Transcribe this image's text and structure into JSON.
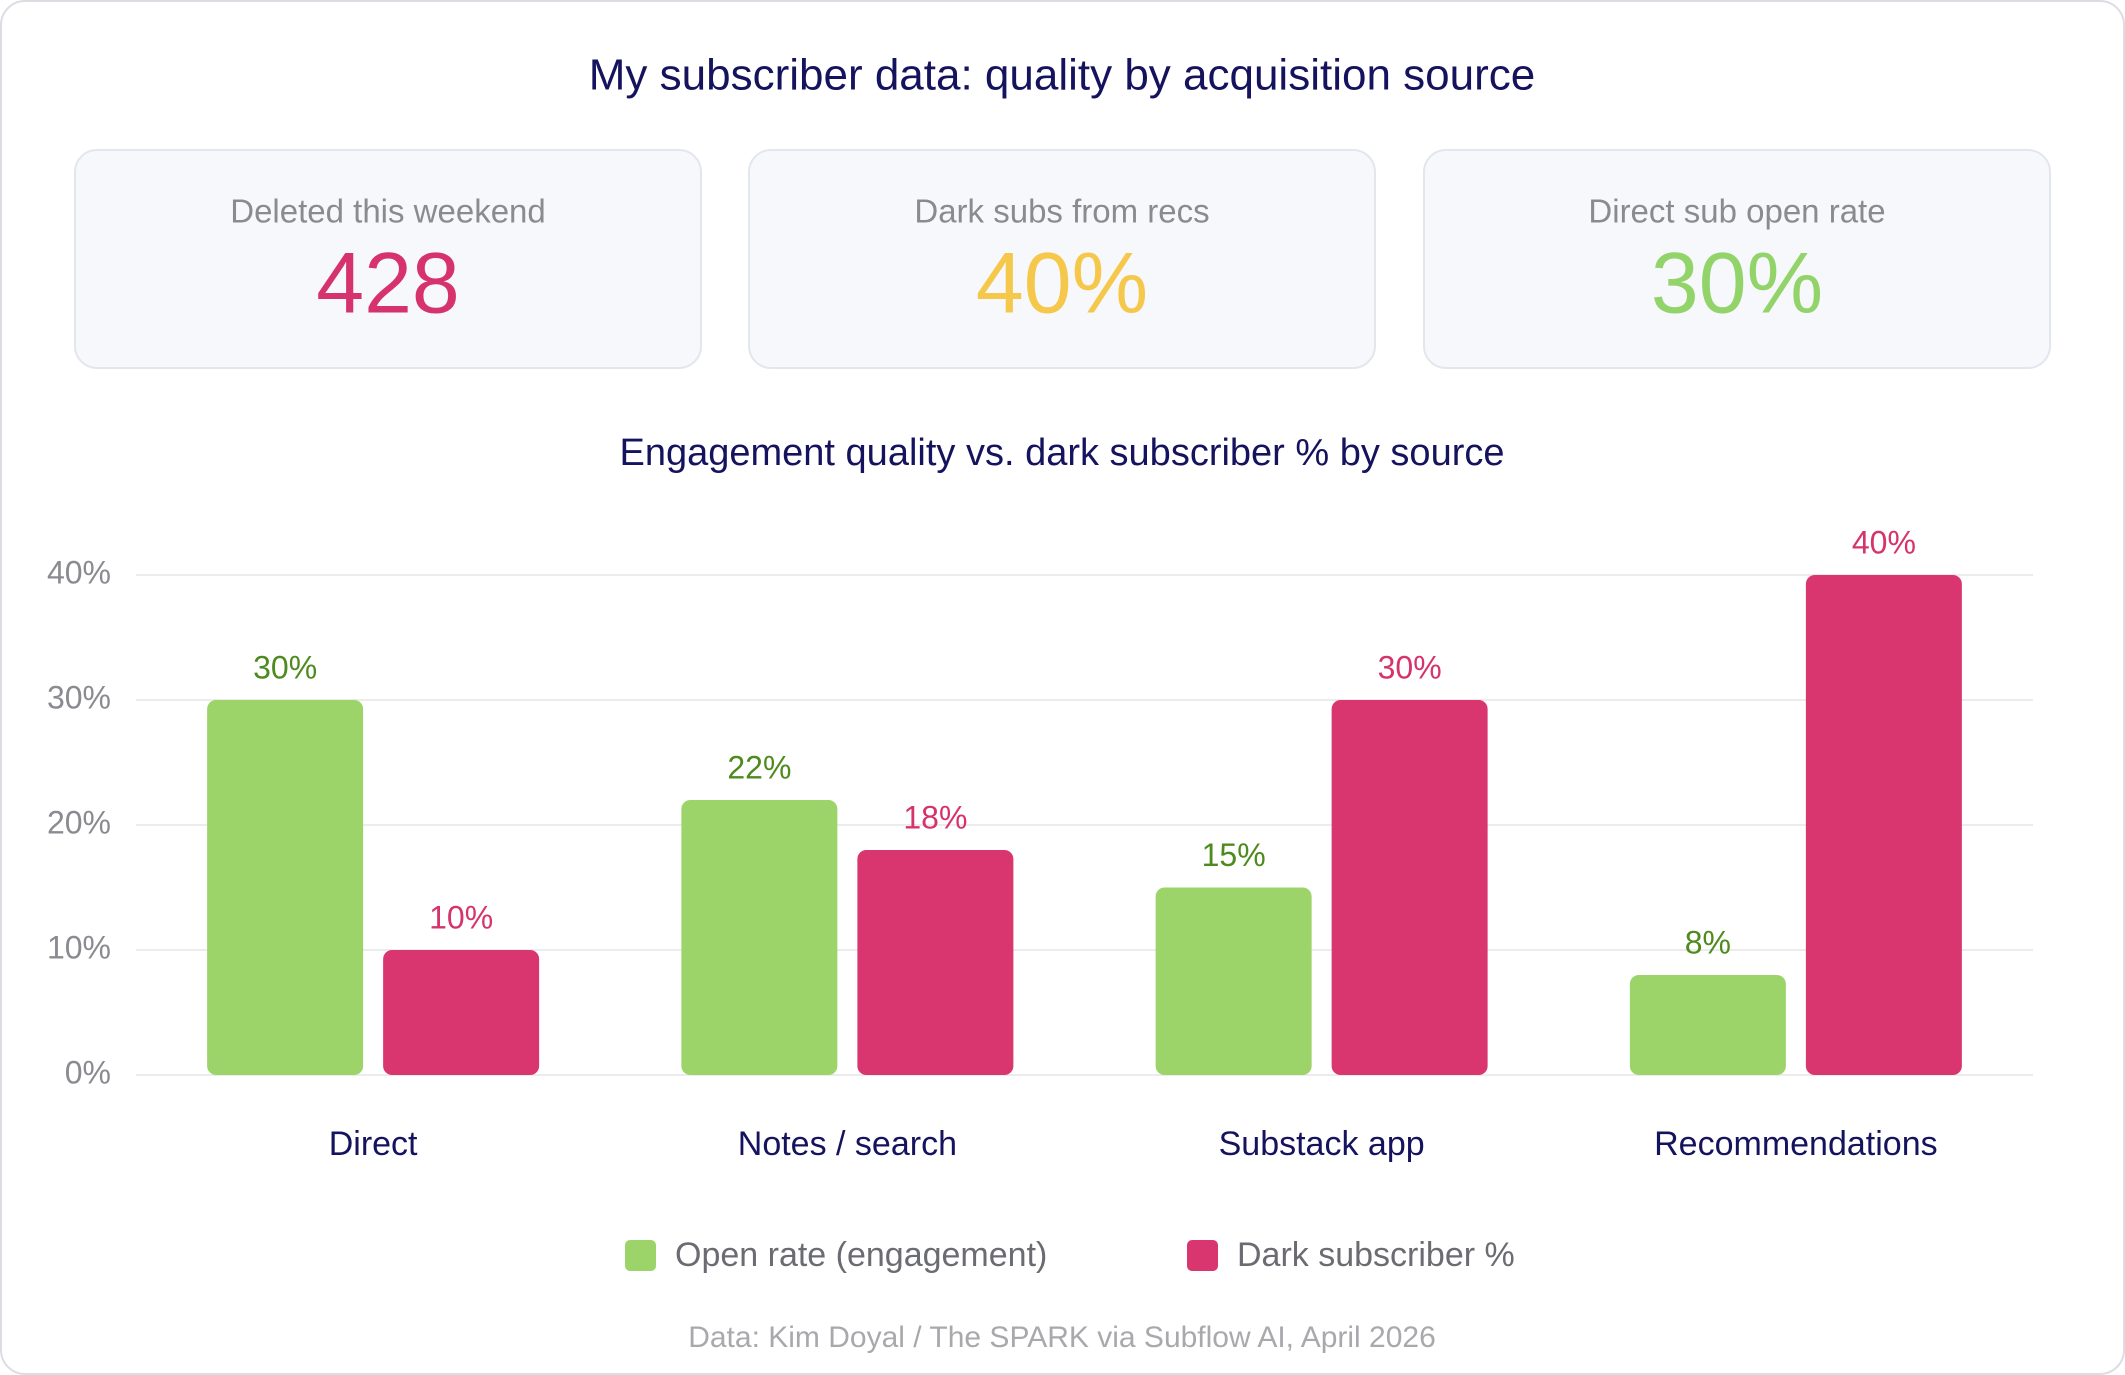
{
  "title": "My subscriber data: quality by acquisition source",
  "kpis": [
    {
      "label": "Deleted this weekend",
      "value": "428",
      "color": "#d6336c"
    },
    {
      "label": "Dark subs from recs",
      "value": "40%",
      "color": "#f5c84c"
    },
    {
      "label": "Direct sub open rate",
      "value": "30%",
      "color": "#92d36a"
    }
  ],
  "chart_data": {
    "type": "bar",
    "title": "Engagement quality vs. dark subscriber % by source",
    "categories": [
      "Direct",
      "Notes / search",
      "Substack app",
      "Recommendations"
    ],
    "series": [
      {
        "name": "Open rate (engagement)",
        "color": "#9cd46a",
        "values": [
          30,
          22,
          15,
          8
        ],
        "value_labels": [
          "30%",
          "22%",
          "15%",
          "8%"
        ],
        "label_color": "#4e8a1e"
      },
      {
        "name": "Dark subscriber %",
        "color": "#d9366f",
        "values": [
          10,
          18,
          30,
          40
        ],
        "value_labels": [
          "10%",
          "18%",
          "30%",
          "40%"
        ],
        "label_color": "#d6336c"
      }
    ],
    "ylim": [
      0,
      40
    ],
    "yticks": [
      {
        "value": 0,
        "label": "0%"
      },
      {
        "value": 10,
        "label": "10%"
      },
      {
        "value": 20,
        "label": "20%"
      },
      {
        "value": 30,
        "label": "30%"
      },
      {
        "value": 40,
        "label": "40%"
      }
    ],
    "grid": true,
    "legend": "bottom"
  },
  "source": "Data: Kim Doyal / The SPARK via Subflow AI, April 2026"
}
